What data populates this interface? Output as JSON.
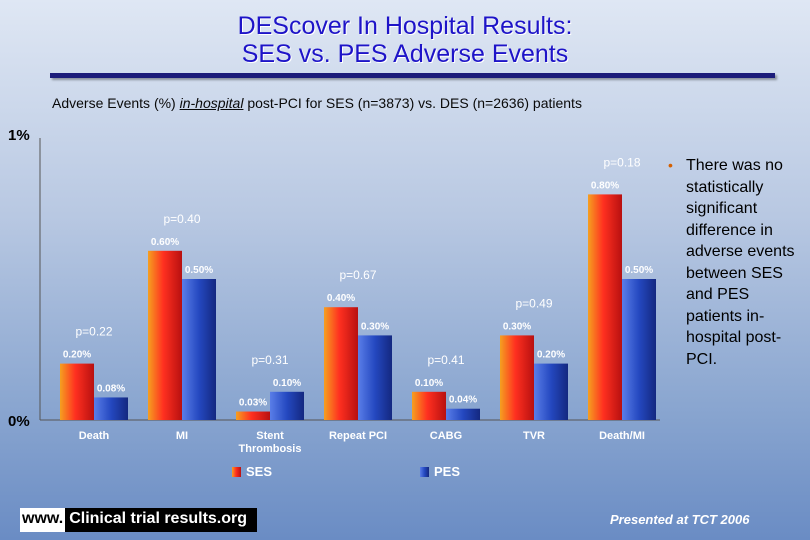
{
  "title_line1": "DEScover In Hospital Results:",
  "title_line2": "SES vs. PES Adverse Events",
  "subtitle_pre": "Adverse Events (%) ",
  "subtitle_underlined": "in-hospital",
  "subtitle_post": " post-PCI for SES (n=3873) vs. DES (n=2636) patients",
  "bullet_text": "There was no statistically significant difference in adverse events between SES and PES patients in-hospital post-PCI.",
  "footer_www": "www.",
  "footer_site": "Clinical trial results.org",
  "footer_right": "Presented at TCT 2006",
  "colors": {
    "ses": "#e8201c",
    "pes": "#2448b8",
    "title": "#1e14c8"
  },
  "chart_data": {
    "type": "bar",
    "categories": [
      "Death",
      "MI",
      "Stent\nThrombosis",
      "Repeat PCI",
      "CABG",
      "TVR",
      "Death/MI"
    ],
    "series": [
      {
        "name": "SES",
        "values": [
          0.2,
          0.6,
          0.03,
          0.4,
          0.1,
          0.3,
          0.8
        ],
        "labels": [
          "0.20%",
          "0.60%",
          "0.03%",
          "0.40%",
          "0.10%",
          "0.30%",
          "0.80%"
        ]
      },
      {
        "name": "PES",
        "values": [
          0.08,
          0.5,
          0.1,
          0.3,
          0.04,
          0.2,
          0.5
        ],
        "labels": [
          "0.08%",
          "0.50%",
          "0.10%",
          "0.30%",
          "0.04%",
          "0.20%",
          "0.50%"
        ]
      }
    ],
    "p_values": [
      "p=0.22",
      "p=0.40",
      "p=0.31",
      "p=0.67",
      "p=0.41",
      "p=0.49",
      "p=0.18"
    ],
    "y_ticks": [
      "0%",
      "1%"
    ],
    "ylim": [
      0,
      1
    ],
    "legend_position": "bottom"
  }
}
